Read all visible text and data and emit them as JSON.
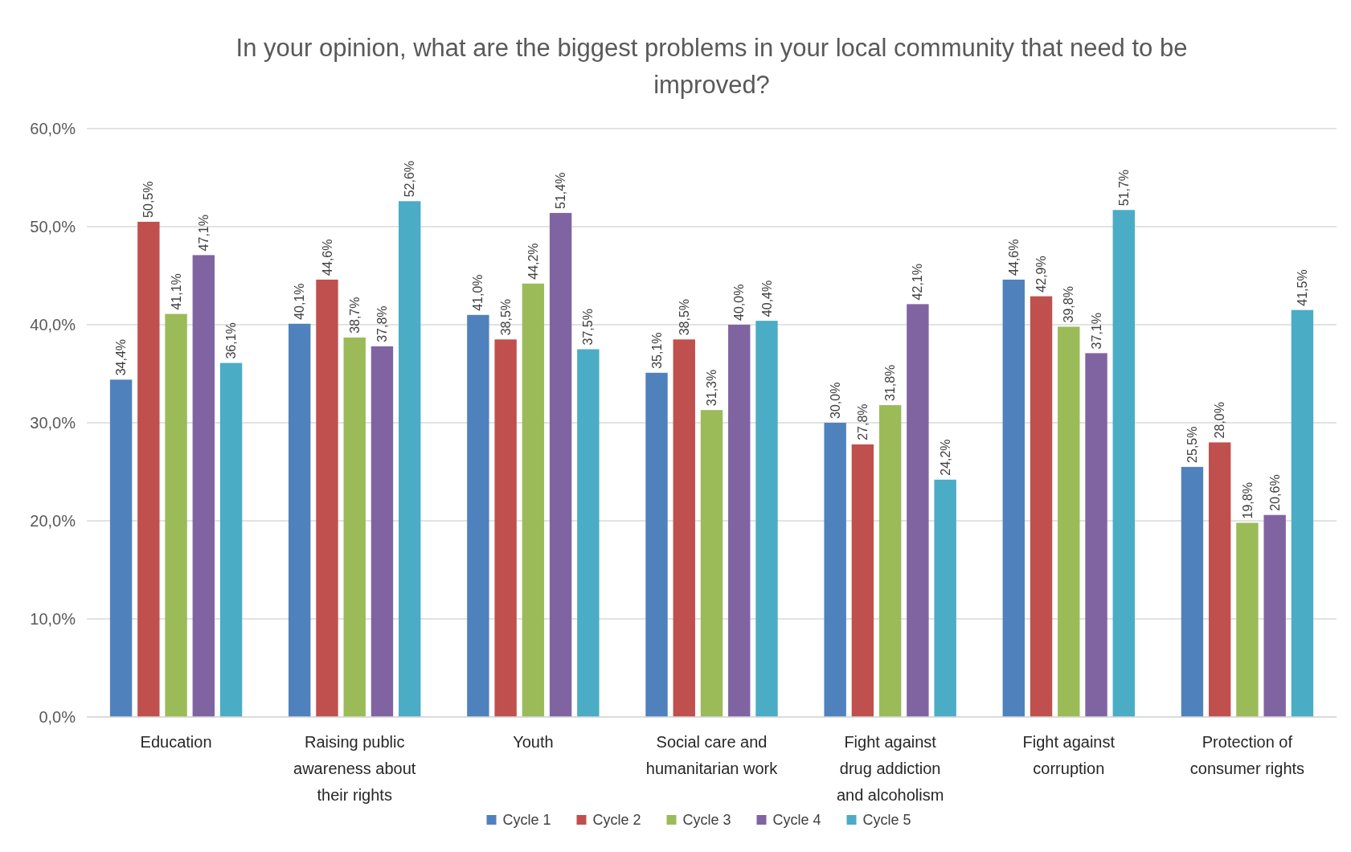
{
  "chart_data": {
    "type": "bar",
    "title": "In your opinion, what are the biggest problems in your local community that need to be improved?",
    "categories": [
      "Education",
      "Raising public awareness about their rights",
      "Youth",
      "Social care and humanitarian work",
      "Fight against drug addiction and alcoholism",
      "Fight against corruption",
      "Protection of consumer rights"
    ],
    "series": [
      {
        "name": "Cycle 1",
        "color": "#4f81bd",
        "values": [
          34.4,
          40.1,
          41.0,
          35.1,
          30.0,
          44.6,
          25.5
        ],
        "value_labels": [
          "34,4%",
          "40,1%",
          "41,0%",
          "35,1%",
          "30,0%",
          "44,6%",
          "25,5%"
        ]
      },
      {
        "name": "Cycle 2",
        "color": "#c0504d",
        "values": [
          50.5,
          44.6,
          38.5,
          38.5,
          27.8,
          42.9,
          28.0
        ],
        "value_labels": [
          "50,5%",
          "44,6%",
          "38,5%",
          "38,5%",
          "27,8%",
          "42,9%",
          "28,0%"
        ]
      },
      {
        "name": "Cycle 3",
        "color": "#9bbb59",
        "values": [
          41.1,
          38.7,
          44.2,
          31.3,
          31.8,
          39.8,
          19.8
        ],
        "value_labels": [
          "41,1%",
          "38,7%",
          "44,2%",
          "31,3%",
          "31,8%",
          "39,8%",
          "19,8%"
        ]
      },
      {
        "name": "Cycle 4",
        "color": "#8064a2",
        "values": [
          47.1,
          37.8,
          51.4,
          40.0,
          42.1,
          37.1,
          20.6
        ],
        "value_labels": [
          "47,1%",
          "37,8%",
          "51,4%",
          "40,0%",
          "42,1%",
          "37,1%",
          "20,6%"
        ]
      },
      {
        "name": "Cycle 5",
        "color": "#4bacc6",
        "values": [
          36.1,
          52.6,
          37.5,
          40.4,
          24.2,
          51.7,
          41.5
        ],
        "value_labels": [
          "36,1%",
          "52,6%",
          "37,5%",
          "40,4%",
          "24,2%",
          "51,7%",
          "41,5%"
        ]
      }
    ],
    "ylim": [
      0,
      60
    ],
    "yticks": [
      {
        "value": 0,
        "label": "0,0%"
      },
      {
        "value": 10,
        "label": "10,0%"
      },
      {
        "value": 20,
        "label": "20,0%"
      },
      {
        "value": 30,
        "label": "30,0%"
      },
      {
        "value": 40,
        "label": "40,0%"
      },
      {
        "value": 50,
        "label": "50,0%"
      },
      {
        "value": 60,
        "label": "60,0%"
      }
    ],
    "grid": "y",
    "legend": "bottom"
  }
}
